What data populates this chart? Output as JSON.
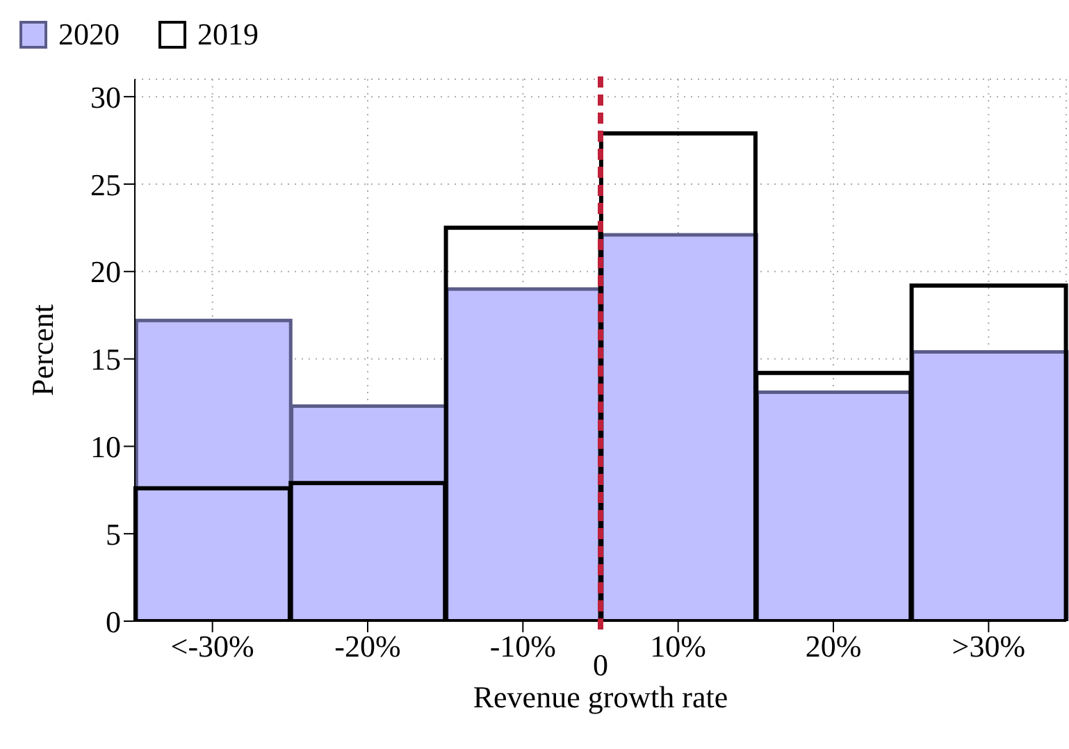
{
  "chart_data": {
    "type": "bar",
    "xlabel": "Revenue growth rate",
    "ylabel": "Percent",
    "categories": [
      "<-30%",
      "-20%",
      "-10%",
      "10%",
      "20%",
      ">30%"
    ],
    "series": [
      {
        "name": "2020",
        "color": "#bfbfff",
        "values": [
          17.2,
          12.3,
          19.0,
          22.1,
          13.1,
          15.4
        ]
      },
      {
        "name": "2019",
        "color": "#000000",
        "values": [
          7.6,
          7.9,
          22.5,
          27.9,
          14.2,
          19.2
        ]
      }
    ],
    "ylim": [
      0,
      31
    ],
    "yticks": [
      0,
      5,
      10,
      15,
      20,
      25,
      30
    ],
    "grid": true,
    "legend": "top left",
    "annotations": [
      "0"
    ]
  }
}
